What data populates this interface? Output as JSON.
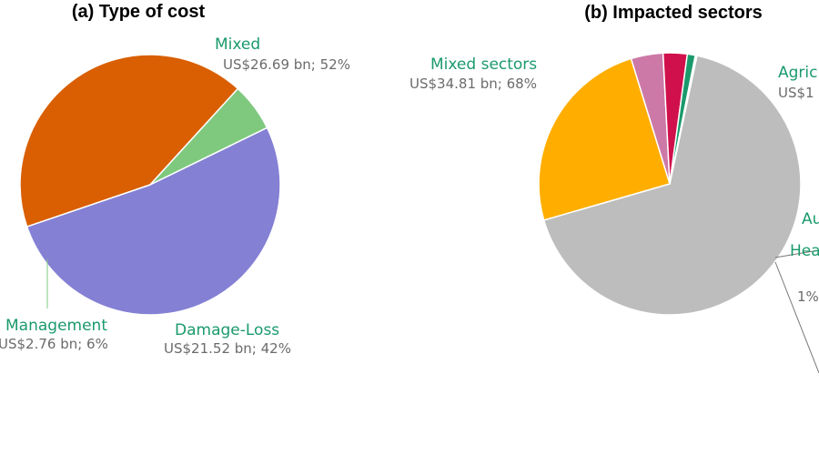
{
  "chart_data": [
    {
      "type": "pie",
      "title": "(a) Type of cost",
      "slices": [
        {
          "name": "Mixed",
          "value_label": "US$26.69 bn; 52%",
          "value": 26.69,
          "percent": 52,
          "color": "#8480d4"
        },
        {
          "name": "Damage-Loss",
          "value_label": "US$21.52 bn; 42%",
          "value": 21.52,
          "percent": 42,
          "color": "#d95f02"
        },
        {
          "name": "Management",
          "value_label": "US$2.76 bn; 6%",
          "value": 2.76,
          "percent": 6,
          "color": "#7fc97f"
        }
      ]
    },
    {
      "type": "pie",
      "title": "(b) Impacted sectors",
      "slices": [
        {
          "name": "Mixed sectors",
          "value_label": "US$34.81 bn; 68%",
          "value": 34.81,
          "percent": 68,
          "color": "#bdbdbd"
        },
        {
          "name": "Agric",
          "value_label": "US$1",
          "percent": 25,
          "color": "#ffae00"
        },
        {
          "name": "Au",
          "value_label": "",
          "percent": 4,
          "color": "#cc79a7"
        },
        {
          "name": "",
          "value_label": "",
          "percent": 3,
          "color": "#d0104c"
        },
        {
          "name": "Hea",
          "value_label": "",
          "percent": 1,
          "color": "#1a9a6c"
        },
        {
          "name": "",
          "value_label": "1%",
          "percent": 0.2,
          "color": "#ffffff"
        }
      ]
    }
  ]
}
